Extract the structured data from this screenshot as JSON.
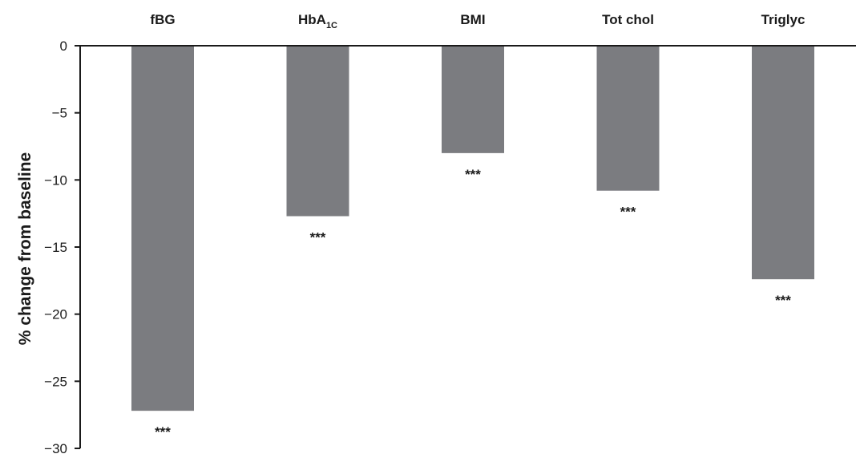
{
  "chart_data": {
    "type": "bar",
    "categories": [
      "fBG",
      "HbA1C",
      "BMI",
      "Tot chol",
      "Triglyc"
    ],
    "values": [
      -27.2,
      -12.7,
      -8.0,
      -10.8,
      -17.4
    ],
    "significance": [
      "***",
      "***",
      "***",
      "***",
      "***"
    ],
    "ylabel": "% change from baseline",
    "ylim": [
      -30,
      0
    ],
    "yticks": [
      0,
      -5,
      -10,
      -15,
      -20,
      -25,
      -30
    ],
    "xaxis_position": "top",
    "grid": false,
    "bar_color": "#7b7c80",
    "axis_color": "#1a1a1a"
  }
}
